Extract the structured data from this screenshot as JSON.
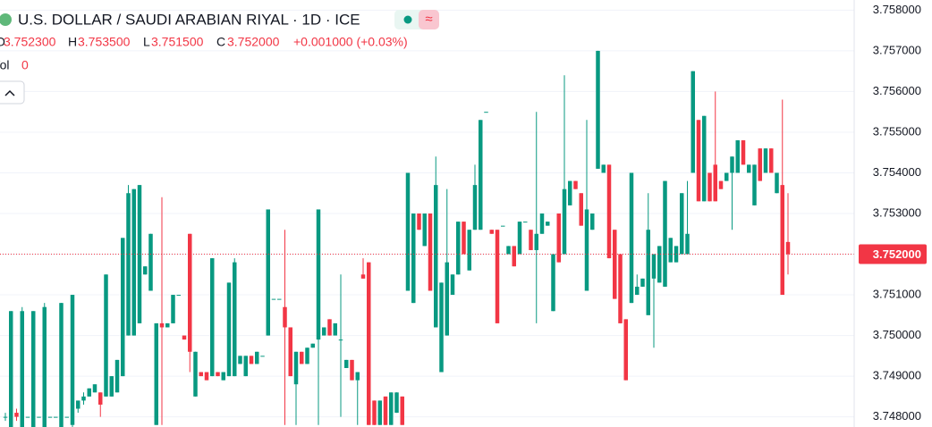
{
  "chart_data": {
    "type": "candlestick",
    "title": "U.S. DOLLAR / SAUDI ARABIAN RIYAL · 1D · ICE",
    "legend": {
      "o_label": "O",
      "open": "3.752300",
      "h_label": "H",
      "high": "3.753500",
      "l_label": "L",
      "low": "3.751500",
      "c_label": "C",
      "close": "3.752000",
      "change": "+0.001000 (+0.03%)",
      "vol_label": "Vol",
      "vol": "0"
    },
    "up_color": "#089981",
    "down_color": "#f23645",
    "ylim": [
      3.74775,
      3.75825
    ],
    "yticks": [
      {
        "value": 3.748,
        "label": "3.748000"
      },
      {
        "value": 3.749,
        "label": "3.749000"
      },
      {
        "value": 3.75,
        "label": "3.750000"
      },
      {
        "value": 3.751,
        "label": "3.751000"
      },
      {
        "value": 3.752,
        "label": "3.752000"
      },
      {
        "value": 3.753,
        "label": "3.753000"
      },
      {
        "value": 3.754,
        "label": "3.754000"
      },
      {
        "value": 3.755,
        "label": "3.755000"
      },
      {
        "value": 3.756,
        "label": "3.756000"
      },
      {
        "value": 3.757,
        "label": "3.757000"
      },
      {
        "value": 3.758,
        "label": "3.758000"
      }
    ],
    "last_price": {
      "value": 3.752,
      "label": "3.752000"
    },
    "grid": true,
    "candles": [
      [
        3.748,
        3.7481,
        3.7479,
        3.748
      ],
      [
        3.7476,
        3.7506,
        3.7476,
        3.7506
      ],
      [
        3.7481,
        3.7482,
        3.7479,
        3.748
      ],
      [
        3.7477,
        3.7507,
        3.7477,
        3.7506
      ],
      [
        3.748,
        3.748,
        3.748,
        3.748
      ],
      [
        3.7476,
        3.7506,
        3.7476,
        3.7506
      ],
      [
        3.748,
        3.748,
        3.748,
        3.748
      ],
      [
        3.7476,
        3.7508,
        3.7476,
        3.7507
      ],
      [
        3.748,
        3.748,
        3.748,
        3.748
      ],
      [
        3.748,
        3.748,
        3.748,
        3.748
      ],
      [
        3.7476,
        3.7508,
        3.7476,
        3.7508
      ],
      [
        3.748,
        3.748,
        3.748,
        3.748
      ],
      [
        3.7478,
        3.751,
        3.7477,
        3.751
      ],
      [
        3.7482,
        3.7484,
        3.7481,
        3.7484
      ],
      [
        3.7484,
        3.7486,
        3.7483,
        3.7485
      ],
      [
        3.7485,
        3.7487,
        3.7485,
        3.7487
      ],
      [
        3.7486,
        3.7488,
        3.7486,
        3.7488
      ],
      [
        3.7486,
        3.7486,
        3.748,
        3.7483
      ],
      [
        3.7485,
        3.7515,
        3.7485,
        3.7515
      ],
      [
        3.7485,
        3.749,
        3.7485,
        3.749
      ],
      [
        3.7486,
        3.7494,
        3.7486,
        3.7494
      ],
      [
        3.749,
        3.7524,
        3.749,
        3.7524
      ],
      [
        3.75,
        3.7537,
        3.75,
        3.7535
      ],
      [
        3.75,
        3.7536,
        3.75,
        3.7536
      ],
      [
        3.7503,
        3.7537,
        3.7503,
        3.7537
      ],
      [
        3.7515,
        3.7517,
        3.7515,
        3.7517
      ],
      [
        3.7511,
        3.7525,
        3.7511,
        3.7525
      ],
      [
        3.7478,
        3.7503,
        3.7478,
        3.7503
      ],
      [
        3.7503,
        3.7534,
        3.7478,
        3.7502
      ],
      [
        3.7502,
        3.7503,
        3.7502,
        3.7503
      ],
      [
        3.7503,
        3.751,
        3.7503,
        3.751
      ],
      [
        3.751,
        3.751,
        3.751,
        3.751
      ],
      [
        3.75,
        3.75,
        3.7499,
        3.7499
      ],
      [
        3.7525,
        3.7525,
        3.7491,
        3.7496
      ],
      [
        3.7485,
        3.7496,
        3.7485,
        3.7496
      ],
      [
        3.7491,
        3.7491,
        3.749,
        3.749
      ],
      [
        3.7491,
        3.7491,
        3.7489,
        3.7489
      ],
      [
        3.749,
        3.7519,
        3.749,
        3.7519
      ],
      [
        3.7491,
        3.7491,
        3.749,
        3.749
      ],
      [
        3.7489,
        3.7491,
        3.7489,
        3.7491
      ],
      [
        3.749,
        3.7513,
        3.749,
        3.7513
      ],
      [
        3.749,
        3.7519,
        3.749,
        3.7518
      ],
      [
        3.7493,
        3.7495,
        3.7493,
        3.7495
      ],
      [
        3.749,
        3.7495,
        3.749,
        3.7495
      ],
      [
        3.7495,
        3.7495,
        3.7493,
        3.7493
      ],
      [
        3.7493,
        3.7496,
        3.7493,
        3.7496
      ],
      [
        3.7495,
        3.7495,
        3.7495,
        3.7495
      ],
      [
        3.75,
        3.7531,
        3.75,
        3.7531
      ],
      [
        3.7509,
        3.7509,
        3.7509,
        3.7509
      ],
      [
        3.7509,
        3.7509,
        3.7509,
        3.7509
      ],
      [
        3.7507,
        3.7526,
        3.7478,
        3.7502
      ],
      [
        3.7502,
        3.7502,
        3.749,
        3.749
      ],
      [
        3.7488,
        3.7496,
        3.7478,
        3.7496
      ],
      [
        3.7496,
        3.7496,
        3.7493,
        3.7493
      ],
      [
        3.7493,
        3.7497,
        3.7493,
        3.7497
      ],
      [
        3.7497,
        3.7498,
        3.7497,
        3.7498
      ],
      [
        3.7499,
        3.7531,
        3.7478,
        3.7531
      ],
      [
        3.75,
        3.7502,
        3.75,
        3.7502
      ],
      [
        3.7504,
        3.7504,
        3.75,
        3.75
      ],
      [
        3.75,
        3.7503,
        3.75,
        3.7503
      ],
      [
        3.7499,
        3.7515,
        3.748,
        3.7499
      ],
      [
        3.7492,
        3.7494,
        3.7492,
        3.7494
      ],
      [
        3.7494,
        3.7494,
        3.7489,
        3.7489
      ],
      [
        3.7489,
        3.7491,
        3.7478,
        3.7491
      ],
      [
        3.7515,
        3.7519,
        3.7514,
        3.7514
      ],
      [
        3.7518,
        3.7518,
        3.7478,
        3.7478
      ],
      [
        3.7484,
        3.7484,
        3.7478,
        3.7478
      ],
      [
        3.7478,
        3.7484,
        3.7478,
        3.7484
      ],
      [
        3.7485,
        3.7485,
        3.7478,
        3.7478
      ],
      [
        3.7478,
        3.7486,
        3.7478,
        3.7486
      ],
      [
        3.7481,
        3.7486,
        3.7481,
        3.7486
      ],
      [
        3.7485,
        3.7485,
        3.7478,
        3.7478
      ],
      [
        3.7511,
        3.754,
        3.7511,
        3.754
      ],
      [
        3.7508,
        3.753,
        3.7508,
        3.753
      ],
      [
        3.753,
        3.753,
        3.7526,
        3.7526
      ],
      [
        3.7522,
        3.753,
        3.7522,
        3.753
      ],
      [
        3.753,
        3.753,
        3.7511,
        3.7511
      ],
      [
        3.7502,
        3.7544,
        3.7502,
        3.7537
      ],
      [
        3.7491,
        3.7513,
        3.7491,
        3.7513
      ],
      [
        3.75,
        3.7536,
        3.75,
        3.7518
      ],
      [
        3.751,
        3.7515,
        3.751,
        3.7515
      ],
      [
        3.7515,
        3.7528,
        3.7515,
        3.7528
      ],
      [
        3.7528,
        3.7528,
        3.752,
        3.752
      ],
      [
        3.7516,
        3.7526,
        3.7516,
        3.7526
      ],
      [
        3.7526,
        3.7542,
        3.7526,
        3.7537
      ],
      [
        3.7526,
        3.7553,
        3.7526,
        3.7553
      ],
      [
        3.7555,
        3.7555,
        3.7555,
        3.7555
      ],
      [
        3.7526,
        3.7526,
        3.7525,
        3.7525
      ],
      [
        3.7526,
        3.7526,
        3.7503,
        3.7503
      ],
      [
        3.7527,
        3.7527,
        3.7527,
        3.7527
      ],
      [
        3.752,
        3.7522,
        3.752,
        3.7522
      ],
      [
        3.7522,
        3.7522,
        3.7517,
        3.7517
      ],
      [
        3.752,
        3.7528,
        3.752,
        3.7528
      ],
      [
        3.7528,
        3.7528,
        3.7528,
        3.7528
      ],
      [
        3.7526,
        3.7526,
        3.7521,
        3.7521
      ],
      [
        3.7521,
        3.7555,
        3.7503,
        3.7525
      ],
      [
        3.7525,
        3.753,
        3.7525,
        3.753
      ],
      [
        3.7527,
        3.7528,
        3.7527,
        3.7528
      ],
      [
        3.7506,
        3.752,
        3.7506,
        3.752
      ],
      [
        3.753,
        3.753,
        3.7518,
        3.7518
      ],
      [
        3.752,
        3.7564,
        3.752,
        3.7536
      ],
      [
        3.7532,
        3.7538,
        3.7532,
        3.7538
      ],
      [
        3.7538,
        3.7538,
        3.7536,
        3.7536
      ],
      [
        3.7535,
        3.7535,
        3.7527,
        3.7527
      ],
      [
        3.7511,
        3.7553,
        3.7511,
        3.7531
      ],
      [
        3.7526,
        3.753,
        3.7526,
        3.753
      ],
      [
        3.7541,
        3.757,
        3.7541,
        3.757
      ],
      [
        3.754,
        3.7542,
        3.754,
        3.7542
      ],
      [
        3.7542,
        3.7542,
        3.7519,
        3.7519
      ],
      [
        3.7526,
        3.7526,
        3.7509,
        3.7509
      ],
      [
        3.752,
        3.752,
        3.7503,
        3.7503
      ],
      [
        3.7504,
        3.7504,
        3.7489,
        3.7489
      ],
      [
        3.7508,
        3.754,
        3.7508,
        3.754
      ],
      [
        3.751,
        3.7515,
        3.751,
        3.7512
      ],
      [
        3.7512,
        3.7514,
        3.7512,
        3.7514
      ],
      [
        3.7505,
        3.7535,
        3.7505,
        3.7526
      ],
      [
        3.7514,
        3.752,
        3.7497,
        3.752
      ],
      [
        3.7513,
        3.7522,
        3.7513,
        3.7522
      ],
      [
        3.7512,
        3.7538,
        3.7512,
        3.7538
      ],
      [
        3.7518,
        3.7524,
        3.7518,
        3.7524
      ],
      [
        3.7518,
        3.7522,
        3.7518,
        3.7522
      ],
      [
        3.752,
        3.7535,
        3.752,
        3.7535
      ],
      [
        3.752,
        3.7538,
        3.752,
        3.7525
      ],
      [
        3.754,
        3.7565,
        3.754,
        3.7565
      ],
      [
        3.7553,
        3.7553,
        3.7533,
        3.7533
      ],
      [
        3.7533,
        3.7554,
        3.7533,
        3.7554
      ],
      [
        3.754,
        3.754,
        3.7533,
        3.7533
      ],
      [
        3.7542,
        3.756,
        3.7533,
        3.7533
      ],
      [
        3.7538,
        3.7538,
        3.7536,
        3.7536
      ],
      [
        3.7538,
        3.754,
        3.7538,
        3.754
      ],
      [
        3.754,
        3.7544,
        3.7526,
        3.7544
      ],
      [
        3.754,
        3.7548,
        3.754,
        3.7548
      ],
      [
        3.7548,
        3.7548,
        3.7542,
        3.7542
      ],
      [
        3.754,
        3.7542,
        3.754,
        3.7542
      ],
      [
        3.7532,
        3.7542,
        3.7532,
        3.7542
      ],
      [
        3.7546,
        3.7546,
        3.7538,
        3.7538
      ],
      [
        3.754,
        3.7546,
        3.754,
        3.7546
      ],
      [
        3.7546,
        3.7546,
        3.754,
        3.754
      ],
      [
        3.7535,
        3.754,
        3.7535,
        3.754
      ],
      [
        3.7537,
        3.7558,
        3.751,
        3.751
      ],
      [
        3.7523,
        3.7535,
        3.7515,
        3.752
      ]
    ]
  }
}
